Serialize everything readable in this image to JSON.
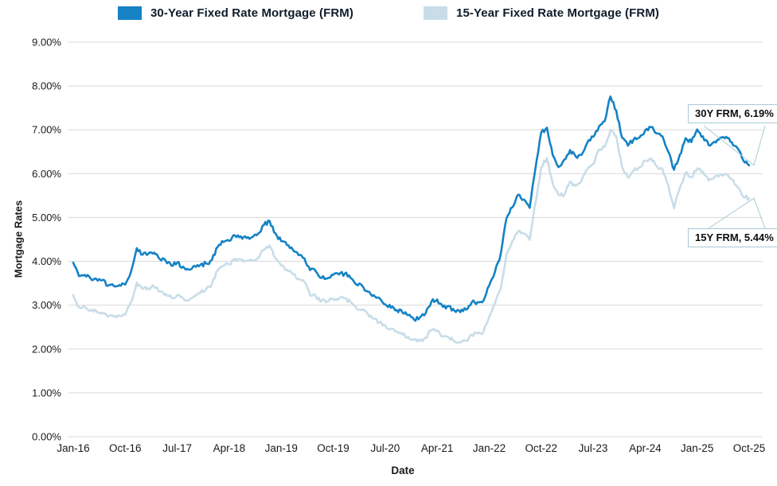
{
  "chart_data": {
    "type": "line",
    "title": "",
    "xlabel": "Date",
    "ylabel": "Mortgage Rates",
    "ylim": [
      0,
      9
    ],
    "grid": true,
    "legend_position": "top",
    "y_tick_labels": [
      "0.00%",
      "1.00%",
      "2.00%",
      "3.00%",
      "4.00%",
      "5.00%",
      "6.00%",
      "7.00%",
      "8.00%",
      "9.00%"
    ],
    "x_tick_labels": [
      "Jan-16",
      "Oct-16",
      "Jul-17",
      "Apr-18",
      "Jan-19",
      "Oct-19",
      "Jul-20",
      "Apr-21",
      "Jan-22",
      "Oct-22",
      "Jul-23",
      "Apr-24",
      "Jan-25",
      "Oct-25"
    ],
    "x_tick_step_months": 9,
    "x": [
      "Jan-16",
      "Feb-16",
      "Mar-16",
      "Apr-16",
      "May-16",
      "Jun-16",
      "Jul-16",
      "Aug-16",
      "Sep-16",
      "Oct-16",
      "Nov-16",
      "Dec-16",
      "Jan-17",
      "Feb-17",
      "Mar-17",
      "Apr-17",
      "May-17",
      "Jun-17",
      "Jul-17",
      "Aug-17",
      "Sep-17",
      "Oct-17",
      "Nov-17",
      "Dec-17",
      "Jan-18",
      "Feb-18",
      "Mar-18",
      "Apr-18",
      "May-18",
      "Jun-18",
      "Jul-18",
      "Aug-18",
      "Sep-18",
      "Oct-18",
      "Nov-18",
      "Dec-18",
      "Jan-19",
      "Feb-19",
      "Mar-19",
      "Apr-19",
      "May-19",
      "Jun-19",
      "Jul-19",
      "Aug-19",
      "Sep-19",
      "Oct-19",
      "Nov-19",
      "Dec-19",
      "Jan-20",
      "Feb-20",
      "Mar-20",
      "Apr-20",
      "May-20",
      "Jun-20",
      "Jul-20",
      "Aug-20",
      "Sep-20",
      "Oct-20",
      "Nov-20",
      "Dec-20",
      "Jan-21",
      "Feb-21",
      "Mar-21",
      "Apr-21",
      "May-21",
      "Jun-21",
      "Jul-21",
      "Aug-21",
      "Sep-21",
      "Oct-21",
      "Nov-21",
      "Dec-21",
      "Jan-22",
      "Feb-22",
      "Mar-22",
      "Apr-22",
      "May-22",
      "Jun-22",
      "Jul-22",
      "Aug-22",
      "Sep-22",
      "Oct-22",
      "Nov-22",
      "Dec-22",
      "Jan-23",
      "Feb-23",
      "Mar-23",
      "Apr-23",
      "May-23",
      "Jun-23",
      "Jul-23",
      "Aug-23",
      "Sep-23",
      "Oct-23",
      "Nov-23",
      "Dec-23",
      "Jan-24",
      "Feb-24",
      "Mar-24",
      "Apr-24",
      "May-24",
      "Jun-24",
      "Jul-24",
      "Aug-24",
      "Sep-24",
      "Oct-24",
      "Nov-24",
      "Dec-24",
      "Jan-25",
      "Feb-25",
      "Mar-25",
      "Apr-25",
      "May-25",
      "Jun-25",
      "Jul-25",
      "Aug-25",
      "Sep-25",
      "Oct-25"
    ],
    "series": [
      {
        "name": "30-Year Fixed Rate Mortgage (FRM)",
        "color": "#1482c4",
        "values": [
          3.97,
          3.66,
          3.69,
          3.61,
          3.6,
          3.57,
          3.44,
          3.44,
          3.46,
          3.47,
          3.77,
          4.3,
          4.15,
          4.17,
          4.2,
          4.05,
          4.01,
          3.9,
          3.97,
          3.88,
          3.81,
          3.9,
          3.92,
          3.95,
          4.03,
          4.33,
          4.44,
          4.47,
          4.59,
          4.57,
          4.53,
          4.55,
          4.63,
          4.83,
          4.92,
          4.64,
          4.46,
          4.37,
          4.27,
          4.14,
          4.07,
          3.8,
          3.77,
          3.62,
          3.61,
          3.69,
          3.7,
          3.72,
          3.62,
          3.47,
          3.45,
          3.31,
          3.23,
          3.16,
          3.02,
          2.94,
          2.89,
          2.83,
          2.77,
          2.67,
          2.72,
          2.81,
          3.08,
          3.13,
          2.96,
          2.98,
          2.87,
          2.84,
          2.9,
          3.07,
          3.07,
          3.1,
          3.45,
          3.76,
          4.17,
          4.98,
          5.23,
          5.52,
          5.41,
          5.22,
          6.11,
          6.94,
          7.05,
          6.42,
          6.15,
          6.32,
          6.54,
          6.39,
          6.43,
          6.71,
          6.84,
          7.07,
          7.2,
          7.76,
          7.44,
          6.82,
          6.64,
          6.78,
          6.82,
          6.99,
          7.06,
          6.92,
          6.85,
          6.5,
          6.09,
          6.43,
          6.81,
          6.72,
          7.01,
          6.85,
          6.65,
          6.73,
          6.82,
          6.84,
          6.72,
          6.58,
          6.3,
          6.19
        ]
      },
      {
        "name": "15-Year Fixed Rate Mortgage (FRM)",
        "color": "#c9dde8",
        "values": [
          3.23,
          2.95,
          2.96,
          2.88,
          2.87,
          2.83,
          2.74,
          2.74,
          2.76,
          2.78,
          3.07,
          3.52,
          3.37,
          3.39,
          3.42,
          3.31,
          3.26,
          3.17,
          3.23,
          3.16,
          3.11,
          3.2,
          3.28,
          3.36,
          3.48,
          3.79,
          3.9,
          3.94,
          4.06,
          4.04,
          4.01,
          4.02,
          4.08,
          4.26,
          4.36,
          4.07,
          3.91,
          3.81,
          3.71,
          3.6,
          3.53,
          3.23,
          3.2,
          3.1,
          3.09,
          3.15,
          3.15,
          3.16,
          3.07,
          2.93,
          2.89,
          2.8,
          2.69,
          2.61,
          2.54,
          2.46,
          2.4,
          2.33,
          2.28,
          2.21,
          2.18,
          2.26,
          2.42,
          2.42,
          2.29,
          2.27,
          2.17,
          2.15,
          2.19,
          2.33,
          2.36,
          2.39,
          2.74,
          3.03,
          3.38,
          4.17,
          4.46,
          4.68,
          4.63,
          4.49,
          5.32,
          6.15,
          6.36,
          5.78,
          5.52,
          5.51,
          5.82,
          5.72,
          5.85,
          6.1,
          6.22,
          6.55,
          6.62,
          7.0,
          6.85,
          6.15,
          5.91,
          6.07,
          6.15,
          6.3,
          6.35,
          6.18,
          6.1,
          5.74,
          5.21,
          5.67,
          6.02,
          5.92,
          6.12,
          6.05,
          5.84,
          5.92,
          5.97,
          5.99,
          5.86,
          5.69,
          5.47,
          5.44
        ]
      }
    ],
    "annotations": [
      {
        "label": "30Y FRM, 6.19%",
        "series": "30Y",
        "value": 6.19
      },
      {
        "label": "15Y FRM, 5.44%",
        "series": "15Y",
        "value": 5.44
      }
    ]
  },
  "colors": {
    "gridline": "#d9d9d9",
    "tick_text": "#1a1a1a",
    "callout_border": "#a9c9d7",
    "series_30y": "#1482c4",
    "series_15y": "#c9dde8"
  }
}
